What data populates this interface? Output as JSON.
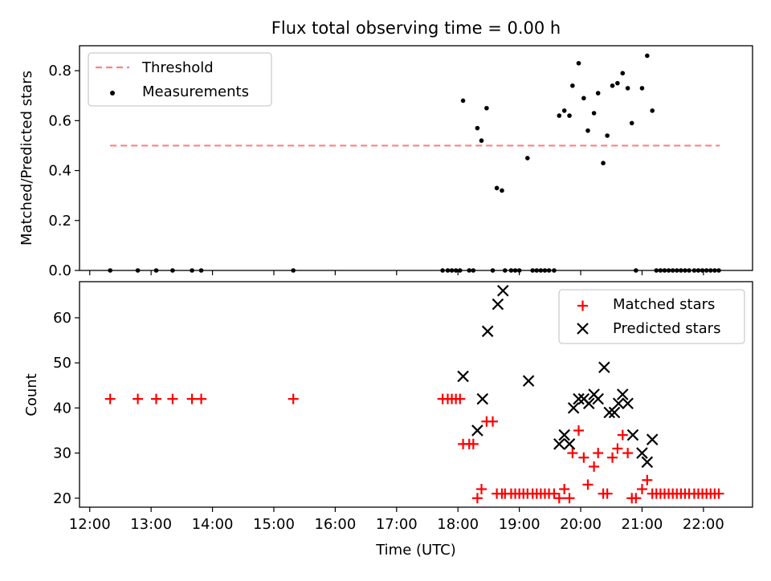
{
  "title": "Flux total observing time = 0.00 h",
  "xlabel": "Time (UTC)",
  "x_ticks": [
    "12:00",
    "13:00",
    "14:00",
    "15:00",
    "16:00",
    "17:00",
    "18:00",
    "19:00",
    "20:00",
    "21:00",
    "22:00"
  ],
  "colors": {
    "threshold": "#ff8080",
    "measurements": "#000000",
    "matched": "#ff0000",
    "predicted": "#000000"
  },
  "chart_data": [
    {
      "type": "scatter",
      "ylabel": "Matched/Predicted stars",
      "xlim": [
        "11:50",
        "22:48"
      ],
      "ylim": [
        0,
        0.9
      ],
      "y_ticks": [
        "0.0",
        "0.2",
        "0.4",
        "0.6",
        "0.8"
      ],
      "legend_position": "top-left",
      "threshold": {
        "name": "Threshold",
        "value": 0.5,
        "x_range": [
          "12:20",
          "22:16"
        ]
      },
      "series": [
        {
          "name": "Measurements",
          "marker": "dot",
          "points": [
            [
              "12:20",
              0
            ],
            [
              "12:47",
              0
            ],
            [
              "13:05",
              0
            ],
            [
              "13:21",
              0
            ],
            [
              "13:40",
              0
            ],
            [
              "13:49",
              0
            ],
            [
              "15:19",
              0
            ],
            [
              "17:45",
              0
            ],
            [
              "17:50",
              0
            ],
            [
              "17:54",
              0
            ],
            [
              "17:58",
              0
            ],
            [
              "18:02",
              0
            ],
            [
              "18:05",
              0.68
            ],
            [
              "18:11",
              0
            ],
            [
              "18:15",
              0
            ],
            [
              "18:19",
              0.57
            ],
            [
              "18:23",
              0.52
            ],
            [
              "18:28",
              0.65
            ],
            [
              "18:34",
              0
            ],
            [
              "18:38",
              0.33
            ],
            [
              "18:43",
              0.32
            ],
            [
              "18:46",
              0
            ],
            [
              "18:52",
              0
            ],
            [
              "18:56",
              0
            ],
            [
              "19:00",
              0
            ],
            [
              "19:08",
              0.45
            ],
            [
              "19:13",
              0
            ],
            [
              "19:17",
              0
            ],
            [
              "19:21",
              0
            ],
            [
              "19:25",
              0
            ],
            [
              "19:29",
              0
            ],
            [
              "19:34",
              0
            ],
            [
              "19:39",
              0.62
            ],
            [
              "19:44",
              0.64
            ],
            [
              "19:49",
              0.62
            ],
            [
              "19:52",
              0.74
            ],
            [
              "19:58",
              0.83
            ],
            [
              "20:03",
              0.69
            ],
            [
              "20:07",
              0.56
            ],
            [
              "20:13",
              0.63
            ],
            [
              "20:17",
              0.71
            ],
            [
              "20:22",
              0.43
            ],
            [
              "20:26",
              0.54
            ],
            [
              "20:31",
              0.74
            ],
            [
              "20:36",
              0.75
            ],
            [
              "20:41",
              0.79
            ],
            [
              "20:46",
              0.73
            ],
            [
              "20:50",
              0.59
            ],
            [
              "20:54",
              0
            ],
            [
              "21:00",
              0.73
            ],
            [
              "21:05",
              0.86
            ],
            [
              "21:10",
              0.64
            ],
            [
              "21:14",
              0
            ],
            [
              "21:18",
              0
            ],
            [
              "21:22",
              0
            ],
            [
              "21:26",
              0
            ],
            [
              "21:30",
              0
            ],
            [
              "21:34",
              0
            ],
            [
              "21:38",
              0
            ],
            [
              "21:42",
              0
            ],
            [
              "21:46",
              0
            ],
            [
              "21:51",
              0
            ],
            [
              "21:55",
              0
            ],
            [
              "21:59",
              0
            ],
            [
              "22:03",
              0
            ],
            [
              "22:07",
              0
            ],
            [
              "22:11",
              0
            ],
            [
              "22:15",
              0
            ]
          ]
        }
      ]
    },
    {
      "type": "scatter",
      "ylabel": "Count",
      "xlim": [
        "11:50",
        "22:48"
      ],
      "ylim": [
        18,
        68
      ],
      "y_ticks": [
        "20",
        "30",
        "40",
        "50",
        "60"
      ],
      "legend_position": "top-right",
      "series": [
        {
          "name": "Matched stars",
          "marker": "plus",
          "points": [
            [
              "12:20",
              42
            ],
            [
              "12:47",
              42
            ],
            [
              "13:05",
              42
            ],
            [
              "13:21",
              42
            ],
            [
              "13:40",
              42
            ],
            [
              "13:49",
              42
            ],
            [
              "15:19",
              42
            ],
            [
              "17:45",
              42
            ],
            [
              "17:50",
              42
            ],
            [
              "17:54",
              42
            ],
            [
              "17:58",
              42
            ],
            [
              "18:02",
              42
            ],
            [
              "18:05",
              32
            ],
            [
              "18:11",
              32
            ],
            [
              "18:15",
              32
            ],
            [
              "18:19",
              20
            ],
            [
              "18:23",
              22
            ],
            [
              "18:28",
              37
            ],
            [
              "18:34",
              37
            ],
            [
              "18:38",
              21
            ],
            [
              "18:43",
              21
            ],
            [
              "18:46",
              21
            ],
            [
              "18:52",
              21
            ],
            [
              "18:56",
              21
            ],
            [
              "19:00",
              21
            ],
            [
              "19:04",
              21
            ],
            [
              "19:08",
              21
            ],
            [
              "19:13",
              21
            ],
            [
              "19:17",
              21
            ],
            [
              "19:21",
              21
            ],
            [
              "19:25",
              21
            ],
            [
              "19:29",
              21
            ],
            [
              "19:34",
              21
            ],
            [
              "19:39",
              20
            ],
            [
              "19:44",
              22
            ],
            [
              "19:49",
              20
            ],
            [
              "19:52",
              30
            ],
            [
              "19:58",
              35
            ],
            [
              "20:03",
              29
            ],
            [
              "20:07",
              23
            ],
            [
              "20:13",
              27
            ],
            [
              "20:17",
              30
            ],
            [
              "20:22",
              21
            ],
            [
              "20:26",
              21
            ],
            [
              "20:31",
              29
            ],
            [
              "20:36",
              31
            ],
            [
              "20:41",
              34
            ],
            [
              "20:46",
              30
            ],
            [
              "20:50",
              20
            ],
            [
              "20:54",
              20
            ],
            [
              "21:00",
              22
            ],
            [
              "21:05",
              24
            ],
            [
              "21:10",
              21
            ],
            [
              "21:14",
              21
            ],
            [
              "21:18",
              21
            ],
            [
              "21:22",
              21
            ],
            [
              "21:26",
              21
            ],
            [
              "21:30",
              21
            ],
            [
              "21:34",
              21
            ],
            [
              "21:38",
              21
            ],
            [
              "21:42",
              21
            ],
            [
              "21:46",
              21
            ],
            [
              "21:51",
              21
            ],
            [
              "21:55",
              21
            ],
            [
              "21:59",
              21
            ],
            [
              "22:03",
              21
            ],
            [
              "22:07",
              21
            ],
            [
              "22:11",
              21
            ],
            [
              "22:15",
              21
            ]
          ]
        },
        {
          "name": "Predicted stars",
          "marker": "x",
          "points": [
            [
              "18:05",
              47
            ],
            [
              "18:19",
              35
            ],
            [
              "18:24",
              42
            ],
            [
              "18:29",
              57
            ],
            [
              "18:39",
              63
            ],
            [
              "18:44",
              66
            ],
            [
              "19:09",
              46
            ],
            [
              "19:39",
              32
            ],
            [
              "19:44",
              34
            ],
            [
              "19:49",
              32
            ],
            [
              "19:53",
              40
            ],
            [
              "19:58",
              42
            ],
            [
              "20:03",
              42
            ],
            [
              "20:08",
              41
            ],
            [
              "20:13",
              43
            ],
            [
              "20:17",
              42
            ],
            [
              "20:23",
              49
            ],
            [
              "20:28",
              39
            ],
            [
              "20:33",
              39
            ],
            [
              "20:37",
              41
            ],
            [
              "20:41",
              43
            ],
            [
              "20:46",
              41
            ],
            [
              "20:51",
              34
            ],
            [
              "21:00",
              30
            ],
            [
              "21:05",
              28
            ],
            [
              "21:10",
              33
            ]
          ]
        }
      ]
    }
  ]
}
